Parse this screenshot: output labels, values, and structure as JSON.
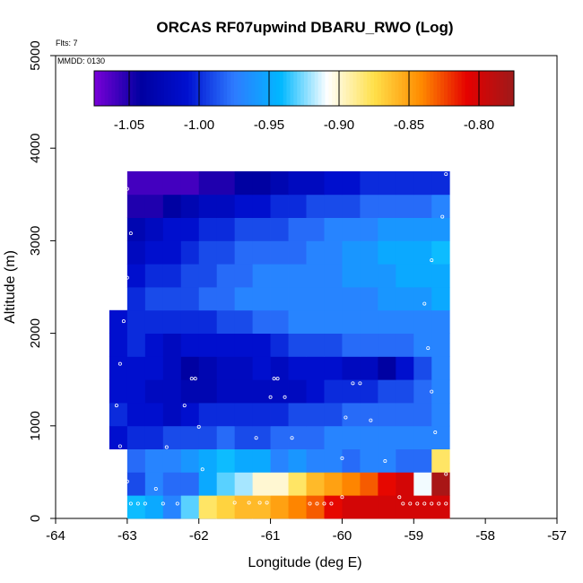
{
  "chart_data": {
    "type": "heatmap",
    "title": "ORCAS RF07upwind DBARU_RWO (Log)",
    "flights_label": "Flts: 7",
    "mmdd_label": "MMDD: 0130",
    "xlabel": "Longitude (deg E)",
    "ylabel": "Altitude (m)",
    "xlim": [
      -64,
      -57
    ],
    "ylim": [
      0,
      5000
    ],
    "x_ticks": [
      -64,
      -63,
      -62,
      -61,
      -60,
      -59,
      -58,
      -57
    ],
    "x_tick_labels": [
      "-64",
      "-63",
      "-62",
      "-61",
      "-60",
      "-59",
      "-58",
      "-57"
    ],
    "y_ticks": [
      0,
      1000,
      2000,
      3000,
      4000,
      5000
    ],
    "y_tick_labels": [
      "0",
      "1000",
      "2000",
      "3000",
      "4000",
      "5000"
    ],
    "colorbar": {
      "range": [
        -1.075,
        -0.775
      ],
      "ticks": [
        -1.05,
        -1.0,
        -0.95,
        -0.9,
        -0.85,
        -0.8
      ],
      "tick_labels": [
        "-1.05",
        "-1.00",
        "-0.95",
        "-0.90",
        "-0.85",
        "-0.80"
      ],
      "stops": [
        "#7a00d8",
        "#0000a0",
        "#0010d0",
        "#2e7bff",
        "#00b8ff",
        "#ffffff",
        "#ffe04a",
        "#ff8c00",
        "#e50000",
        "#9e1a1a"
      ]
    },
    "grid": {
      "lon_edges": [
        -63.25,
        -63.0,
        -62.75,
        -62.5,
        -62.25,
        -62.0,
        -61.75,
        -61.5,
        -61.25,
        -61.0,
        -60.75,
        -60.5,
        -60.25,
        -60.0,
        -59.75,
        -59.5,
        -59.25,
        -59.0,
        -58.75,
        -58.5
      ],
      "alt_bin_height": 250,
      "rows": [
        {
          "alt": 0,
          "start": 1,
          "values": [
            -0.94,
            -0.95,
            -0.97,
            -0.93,
            -0.88,
            -0.87,
            -0.86,
            -0.86,
            -0.85,
            -0.84,
            -0.83,
            -0.81,
            -0.8,
            -0.8,
            -0.8,
            -0.8,
            -0.8,
            -0.8
          ]
        },
        {
          "alt": 250,
          "start": 1,
          "values": [
            -0.99,
            -0.97,
            -0.98,
            -0.98,
            -0.95,
            -0.93,
            -0.92,
            -0.9,
            -0.9,
            -0.88,
            -0.86,
            -0.85,
            -0.84,
            -0.83,
            -0.81,
            -0.8,
            -0.91,
            -0.78
          ]
        },
        {
          "alt": 500,
          "start": 1,
          "values": [
            -0.98,
            -0.97,
            -0.97,
            -0.96,
            -0.95,
            -0.94,
            -0.95,
            -0.95,
            -0.97,
            -0.96,
            -0.97,
            -0.97,
            -0.98,
            -0.97,
            -0.97,
            -0.98,
            -0.98,
            -0.88
          ]
        },
        {
          "alt": 750,
          "start": 0,
          "values": [
            -1.01,
            -1.0,
            -1.0,
            -0.99,
            -0.99,
            -0.99,
            -0.98,
            -0.99,
            -0.99,
            -0.98,
            -0.98,
            -0.98,
            -0.97,
            -0.97,
            -0.97,
            -0.97,
            -0.97,
            -0.97,
            -0.97
          ]
        },
        {
          "alt": 1000,
          "start": 0,
          "values": [
            -1.0,
            -1.01,
            -1.01,
            -1.02,
            -1.01,
            -1.0,
            -1.0,
            -1.0,
            -1.0,
            -1.0,
            -0.99,
            -0.99,
            -0.99,
            -0.98,
            -0.98,
            -0.98,
            -0.98,
            -0.98,
            -0.97
          ]
        },
        {
          "alt": 1250,
          "start": 0,
          "values": [
            -1.01,
            -1.01,
            -1.02,
            -1.02,
            -1.03,
            -1.03,
            -1.02,
            -1.02,
            -1.02,
            -1.02,
            -1.02,
            -1.01,
            -1.0,
            -1.0,
            -1.0,
            -0.99,
            -0.99,
            -0.98,
            -0.97
          ]
        },
        {
          "alt": 1500,
          "start": 0,
          "values": [
            -1.01,
            -1.01,
            -1.01,
            -1.02,
            -1.04,
            -1.03,
            -1.02,
            -1.02,
            -1.01,
            -1.02,
            -1.01,
            -1.01,
            -1.01,
            -1.02,
            -1.02,
            -1.04,
            -1.01,
            -0.99,
            -0.97
          ]
        },
        {
          "alt": 1750,
          "start": 0,
          "values": [
            -1.01,
            -1.0,
            -1.01,
            -1.02,
            -1.01,
            -1.01,
            -1.01,
            -1.01,
            -1.01,
            -1.0,
            -0.99,
            -0.99,
            -0.99,
            -0.98,
            -0.98,
            -0.98,
            -0.98,
            -0.97,
            -0.97
          ]
        },
        {
          "alt": 2000,
          "start": 0,
          "values": [
            -1.01,
            -1.0,
            -1.0,
            -1.0,
            -1.0,
            -1.0,
            -0.99,
            -0.99,
            -0.98,
            -0.98,
            -0.97,
            -0.97,
            -0.97,
            -0.97,
            -0.97,
            -0.97,
            -0.97,
            -0.97,
            -0.97
          ]
        },
        {
          "alt": 2250,
          "start": 1,
          "values": [
            -1.0,
            -0.99,
            -0.99,
            -0.99,
            -0.98,
            -0.98,
            -0.97,
            -0.97,
            -0.97,
            -0.97,
            -0.97,
            -0.97,
            -0.97,
            -0.97,
            -0.96,
            -0.96,
            -0.96,
            -0.95
          ]
        },
        {
          "alt": 2500,
          "start": 1,
          "values": [
            -1.01,
            -1.0,
            -1.0,
            -0.99,
            -0.99,
            -0.98,
            -0.98,
            -0.97,
            -0.97,
            -0.97,
            -0.97,
            -0.97,
            -0.96,
            -0.96,
            -0.96,
            -0.95,
            -0.95,
            -0.95
          ]
        },
        {
          "alt": 2750,
          "start": 1,
          "values": [
            -1.02,
            -1.01,
            -1.01,
            -1.0,
            -0.99,
            -0.99,
            -0.98,
            -0.98,
            -0.98,
            -0.98,
            -0.97,
            -0.97,
            -0.96,
            -0.96,
            -0.95,
            -0.95,
            -0.95,
            -0.94
          ]
        },
        {
          "alt": 3000,
          "start": 1,
          "values": [
            -1.03,
            -1.02,
            -1.01,
            -1.01,
            -1.0,
            -1.0,
            -0.99,
            -0.99,
            -0.99,
            -0.98,
            -0.98,
            -0.97,
            -0.97,
            -0.97,
            -0.96,
            -0.96,
            -0.96,
            -0.96
          ]
        },
        {
          "alt": 3250,
          "start": 1,
          "values": [
            -1.05,
            -1.05,
            -1.04,
            -1.03,
            -1.02,
            -1.02,
            -1.01,
            -1.01,
            -1.0,
            -1.0,
            -0.99,
            -0.99,
            -0.99,
            -0.98,
            -0.98,
            -0.98,
            -0.98,
            -0.97
          ]
        },
        {
          "alt": 3500,
          "start": 1,
          "values": [
            -1.06,
            -1.06,
            -1.06,
            -1.06,
            -1.05,
            -1.05,
            -1.04,
            -1.04,
            -1.03,
            -1.02,
            -1.02,
            -1.01,
            -1.01,
            -1.0,
            -1.0,
            -1.0,
            -1.0,
            -1.0
          ]
        }
      ]
    },
    "flight_points": [
      [
        -63.0,
        3560
      ],
      [
        -62.95,
        3080
      ],
      [
        -63.0,
        2600
      ],
      [
        -63.05,
        2130
      ],
      [
        -63.1,
        1670
      ],
      [
        -63.15,
        1220
      ],
      [
        -63.1,
        780
      ],
      [
        -62.45,
        770
      ],
      [
        -62.2,
        1220
      ],
      [
        -62.1,
        1510
      ],
      [
        -62.05,
        1510
      ],
      [
        -62.0,
        990
      ],
      [
        -61.95,
        530
      ],
      [
        -61.2,
        870
      ],
      [
        -61.0,
        1310
      ],
      [
        -60.95,
        1510
      ],
      [
        -60.9,
        1510
      ],
      [
        -60.8,
        1310
      ],
      [
        -60.7,
        870
      ],
      [
        -60.0,
        650
      ],
      [
        -59.95,
        1090
      ],
      [
        -59.85,
        1460
      ],
      [
        -59.75,
        1460
      ],
      [
        -59.6,
        1060
      ],
      [
        -59.4,
        620
      ],
      [
        -58.7,
        930
      ],
      [
        -58.75,
        1370
      ],
      [
        -58.8,
        1840
      ],
      [
        -58.85,
        2320
      ],
      [
        -58.75,
        2790
      ],
      [
        -58.6,
        3260
      ],
      [
        -58.55,
        3720
      ],
      [
        -58.55,
        480
      ],
      [
        -59.2,
        230
      ],
      [
        -60.0,
        230
      ],
      [
        -62.6,
        320
      ],
      [
        -63.0,
        400
      ],
      [
        -63.05,
        160
      ],
      [
        -62.95,
        160
      ],
      [
        -62.85,
        160
      ],
      [
        -62.75,
        160
      ],
      [
        -62.5,
        160
      ],
      [
        -62.3,
        160
      ],
      [
        -61.5,
        170
      ],
      [
        -61.3,
        170
      ],
      [
        -61.15,
        170
      ],
      [
        -61.05,
        170
      ],
      [
        -60.45,
        160
      ],
      [
        -60.35,
        160
      ],
      [
        -60.25,
        160
      ],
      [
        -60.15,
        160
      ],
      [
        -59.15,
        160
      ],
      [
        -59.05,
        160
      ],
      [
        -58.95,
        160
      ],
      [
        -58.85,
        160
      ],
      [
        -58.75,
        160
      ],
      [
        -58.65,
        160
      ],
      [
        -58.55,
        160
      ]
    ]
  }
}
